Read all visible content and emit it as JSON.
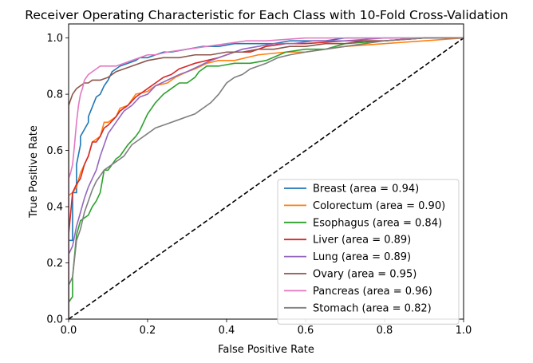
{
  "chart_data": {
    "type": "line",
    "title": "Receiver Operating Characteristic for Each Class with 10-Fold Cross-Validation",
    "xlabel": "False Positive Rate",
    "ylabel": "True Positive Rate",
    "xlim": [
      0.0,
      1.0
    ],
    "ylim": [
      0.0,
      1.05
    ],
    "xticks": [
      "0.0",
      "0.2",
      "0.4",
      "0.6",
      "0.8",
      "1.0"
    ],
    "yticks": [
      "0.0",
      "0.2",
      "0.4",
      "0.6",
      "0.8",
      "1.0"
    ],
    "grid": false,
    "legend_position": "lower-right",
    "diagonal": {
      "x": [
        0,
        1
      ],
      "y": [
        0,
        1
      ],
      "color": "#000000",
      "style": "dashed"
    },
    "series": [
      {
        "name": "Breast (area = 0.94)",
        "color": "#1f77b4",
        "x": [
          0,
          0,
          0.01,
          0.01,
          0.02,
          0.02,
          0.03,
          0.03,
          0.05,
          0.05,
          0.07,
          0.08,
          0.09,
          0.1,
          0.11,
          0.12,
          0.13,
          0.15,
          0.17,
          0.18,
          0.2,
          0.24,
          0.26,
          0.3,
          0.34,
          0.38,
          0.42,
          0.48,
          0.52,
          0.56,
          0.6,
          0.65,
          0.7,
          0.8,
          1.0
        ],
        "y": [
          0,
          0.28,
          0.28,
          0.45,
          0.45,
          0.55,
          0.62,
          0.65,
          0.7,
          0.72,
          0.79,
          0.8,
          0.83,
          0.85,
          0.88,
          0.89,
          0.9,
          0.91,
          0.92,
          0.93,
          0.93,
          0.95,
          0.95,
          0.96,
          0.97,
          0.97,
          0.98,
          0.98,
          0.98,
          0.99,
          0.99,
          0.99,
          1.0,
          1.0,
          1.0
        ]
      },
      {
        "name": "Colorectum (area = 0.90)",
        "color": "#ff7f0e",
        "x": [
          0,
          0,
          0.01,
          0.02,
          0.03,
          0.04,
          0.05,
          0.06,
          0.08,
          0.09,
          0.1,
          0.12,
          0.13,
          0.15,
          0.17,
          0.2,
          0.22,
          0.25,
          0.27,
          0.3,
          0.32,
          0.35,
          0.38,
          0.42,
          0.48,
          0.55,
          0.6,
          0.7,
          0.8,
          0.9,
          1.0
        ],
        "y": [
          0,
          0.44,
          0.45,
          0.47,
          0.52,
          0.55,
          0.58,
          0.63,
          0.65,
          0.7,
          0.7,
          0.72,
          0.75,
          0.76,
          0.8,
          0.81,
          0.83,
          0.84,
          0.86,
          0.88,
          0.89,
          0.91,
          0.92,
          0.92,
          0.94,
          0.95,
          0.95,
          0.97,
          0.98,
          0.99,
          1.0
        ]
      },
      {
        "name": "Esophagus (area = 0.84)",
        "color": "#2ca02c",
        "x": [
          0,
          0.01,
          0.01,
          0.02,
          0.03,
          0.04,
          0.05,
          0.06,
          0.07,
          0.08,
          0.09,
          0.1,
          0.11,
          0.12,
          0.13,
          0.15,
          0.17,
          0.18,
          0.19,
          0.2,
          0.22,
          0.24,
          0.26,
          0.28,
          0.3,
          0.32,
          0.33,
          0.35,
          0.38,
          0.42,
          0.46,
          0.5,
          0.55,
          0.6,
          0.65,
          0.7,
          0.8,
          0.9,
          1.0
        ],
        "y": [
          0.06,
          0.08,
          0.15,
          0.3,
          0.35,
          0.36,
          0.37,
          0.4,
          0.42,
          0.45,
          0.53,
          0.53,
          0.55,
          0.57,
          0.58,
          0.62,
          0.65,
          0.67,
          0.7,
          0.73,
          0.77,
          0.8,
          0.82,
          0.84,
          0.84,
          0.86,
          0.88,
          0.9,
          0.9,
          0.91,
          0.91,
          0.92,
          0.95,
          0.96,
          0.96,
          0.98,
          0.99,
          1.0,
          1.0
        ]
      },
      {
        "name": "Liver (area = 0.89)",
        "color": "#d62728",
        "x": [
          0,
          0,
          0.01,
          0.02,
          0.03,
          0.04,
          0.05,
          0.06,
          0.07,
          0.08,
          0.09,
          0.1,
          0.12,
          0.13,
          0.15,
          0.17,
          0.2,
          0.22,
          0.24,
          0.26,
          0.28,
          0.3,
          0.32,
          0.35,
          0.38,
          0.42,
          0.46,
          0.5,
          0.55,
          0.6,
          0.7,
          0.8,
          0.9,
          1.0
        ],
        "y": [
          0,
          0.3,
          0.45,
          0.48,
          0.5,
          0.55,
          0.58,
          0.63,
          0.63,
          0.65,
          0.68,
          0.69,
          0.72,
          0.74,
          0.76,
          0.79,
          0.82,
          0.84,
          0.86,
          0.87,
          0.89,
          0.9,
          0.91,
          0.92,
          0.93,
          0.95,
          0.95,
          0.97,
          0.98,
          0.98,
          0.99,
          0.99,
          1.0,
          1.0
        ]
      },
      {
        "name": "Lung (area = 0.89)",
        "color": "#9467bd",
        "x": [
          0,
          0,
          0.01,
          0.02,
          0.03,
          0.04,
          0.05,
          0.06,
          0.07,
          0.08,
          0.09,
          0.1,
          0.12,
          0.14,
          0.16,
          0.18,
          0.2,
          0.22,
          0.25,
          0.28,
          0.3,
          0.33,
          0.36,
          0.4,
          0.44,
          0.48,
          0.52,
          0.57,
          0.62,
          0.7,
          0.8,
          0.9,
          1.0
        ],
        "y": [
          0,
          0.23,
          0.26,
          0.33,
          0.38,
          0.43,
          0.47,
          0.5,
          0.53,
          0.58,
          0.62,
          0.66,
          0.7,
          0.74,
          0.76,
          0.79,
          0.8,
          0.83,
          0.85,
          0.87,
          0.88,
          0.9,
          0.92,
          0.94,
          0.96,
          0.97,
          0.98,
          0.98,
          0.99,
          0.99,
          1.0,
          1.0,
          1.0
        ]
      },
      {
        "name": "Ovary (area = 0.95)",
        "color": "#8c564b",
        "x": [
          0,
          0,
          0.01,
          0.02,
          0.03,
          0.04,
          0.05,
          0.06,
          0.08,
          0.1,
          0.12,
          0.14,
          0.16,
          0.2,
          0.24,
          0.28,
          0.32,
          0.36,
          0.4,
          0.44,
          0.48,
          0.52,
          0.56,
          0.6,
          0.65,
          0.7,
          0.75,
          0.8,
          0.9,
          1.0
        ],
        "y": [
          0,
          0.76,
          0.8,
          0.82,
          0.83,
          0.84,
          0.84,
          0.85,
          0.85,
          0.86,
          0.88,
          0.89,
          0.9,
          0.92,
          0.93,
          0.93,
          0.94,
          0.94,
          0.95,
          0.95,
          0.96,
          0.96,
          0.97,
          0.97,
          0.98,
          0.98,
          0.99,
          0.99,
          1.0,
          1.0
        ]
      },
      {
        "name": "Pancreas (area = 0.96)",
        "color": "#e377c2",
        "x": [
          0,
          0,
          0.005,
          0.01,
          0.015,
          0.02,
          0.025,
          0.03,
          0.035,
          0.04,
          0.045,
          0.05,
          0.06,
          0.07,
          0.08,
          0.1,
          0.12,
          0.14,
          0.16,
          0.18,
          0.2,
          0.22,
          0.25,
          0.3,
          0.35,
          0.4,
          0.45,
          0.5,
          0.6,
          0.7,
          0.8,
          0.9,
          1.0
        ],
        "y": [
          0,
          0.5,
          0.52,
          0.55,
          0.62,
          0.7,
          0.76,
          0.8,
          0.82,
          0.85,
          0.86,
          0.87,
          0.88,
          0.89,
          0.9,
          0.9,
          0.9,
          0.91,
          0.92,
          0.93,
          0.94,
          0.94,
          0.95,
          0.96,
          0.97,
          0.98,
          0.99,
          0.99,
          1.0,
          1.0,
          1.0,
          1.0,
          1.0
        ]
      },
      {
        "name": "Stomach (area = 0.82)",
        "color": "#7f7f7f",
        "x": [
          0,
          0,
          0.01,
          0.02,
          0.03,
          0.04,
          0.05,
          0.06,
          0.07,
          0.08,
          0.09,
          0.1,
          0.12,
          0.14,
          0.15,
          0.16,
          0.18,
          0.2,
          0.22,
          0.24,
          0.26,
          0.28,
          0.3,
          0.32,
          0.34,
          0.36,
          0.38,
          0.4,
          0.42,
          0.44,
          0.46,
          0.48,
          0.5,
          0.53,
          0.56,
          0.6,
          0.65,
          0.7,
          0.75,
          0.8,
          0.9,
          1.0
        ],
        "y": [
          0,
          0.12,
          0.15,
          0.28,
          0.32,
          0.38,
          0.42,
          0.46,
          0.49,
          0.51,
          0.53,
          0.54,
          0.56,
          0.58,
          0.6,
          0.62,
          0.64,
          0.66,
          0.68,
          0.69,
          0.7,
          0.71,
          0.72,
          0.73,
          0.75,
          0.77,
          0.8,
          0.84,
          0.86,
          0.87,
          0.89,
          0.9,
          0.91,
          0.93,
          0.94,
          0.95,
          0.96,
          0.97,
          0.98,
          0.99,
          1.0,
          1.0
        ]
      }
    ]
  }
}
